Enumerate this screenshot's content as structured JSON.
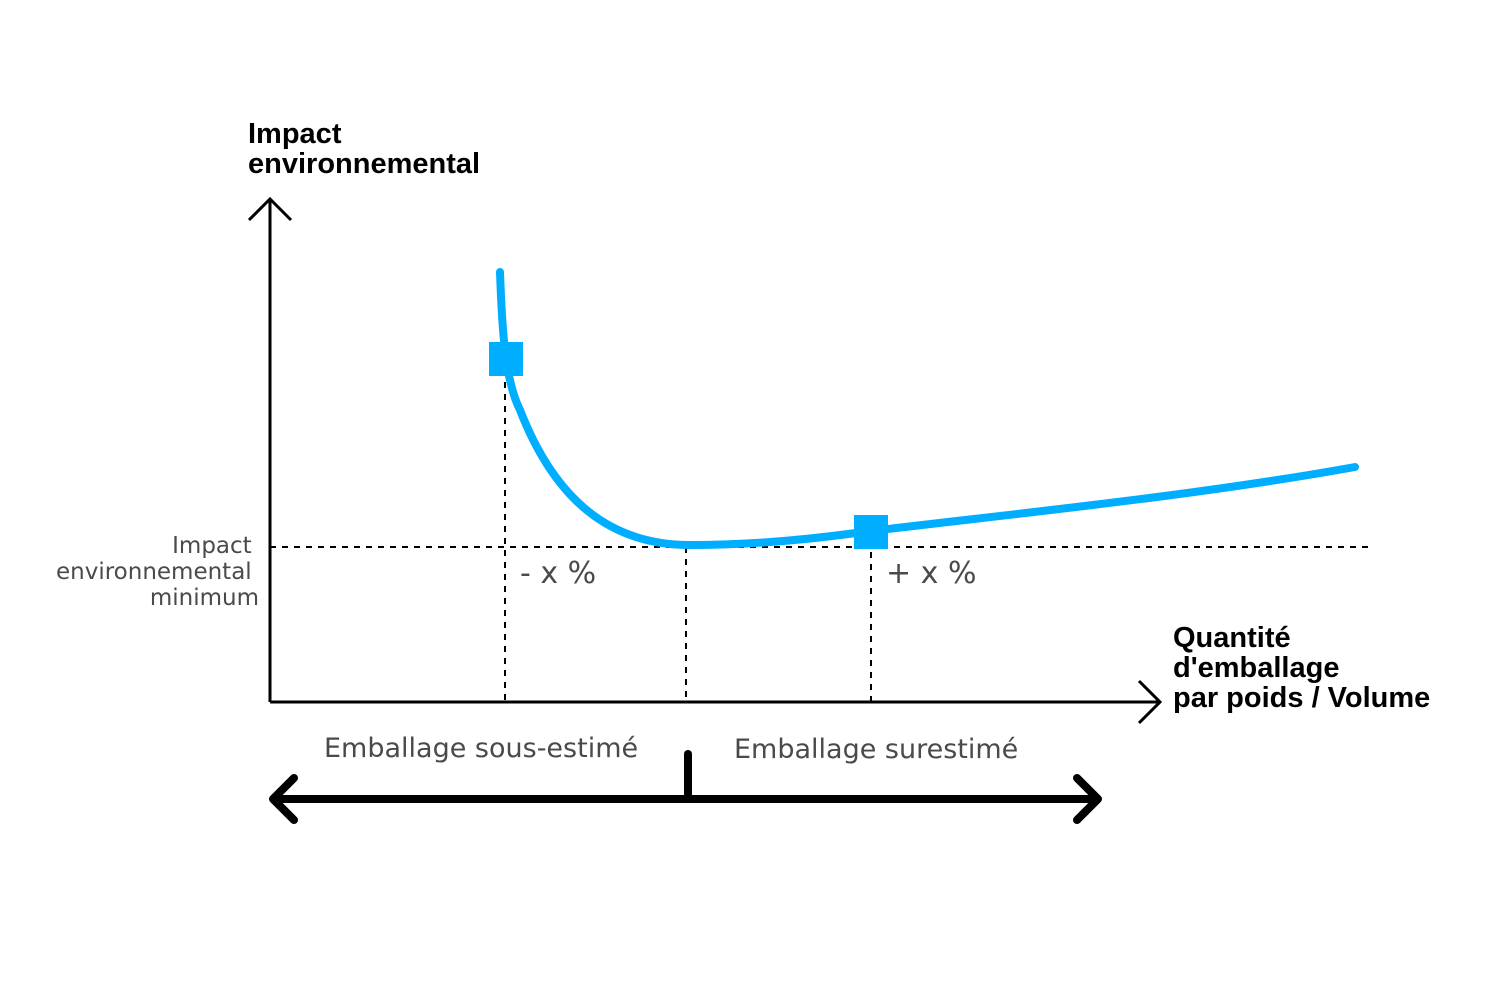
{
  "y_axis_label": [
    "Impact",
    "environnemental"
  ],
  "x_axis_label": [
    "Quantité",
    "d'emballage",
    "par poids / Volume"
  ],
  "minimum_label": [
    "Impact",
    "environnemental",
    "minimum"
  ],
  "left_marker_label": "- x %",
  "right_marker_label": "+ x %",
  "under_label": "Emballage sous-estimé",
  "over_label": "Emballage surestimé",
  "colors": {
    "curve": "#00AEFF",
    "axis": "#000000",
    "text": "#4a4a4a"
  }
}
